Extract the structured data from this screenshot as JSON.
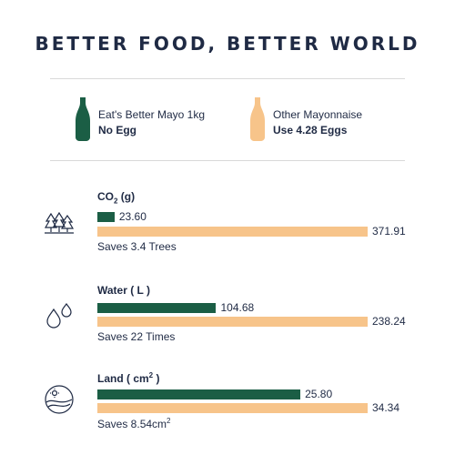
{
  "title": "BETTER FOOD, BETTER WORLD",
  "legend": [
    {
      "line1": "Eat's Better Mayo 1kg",
      "line2": "No Egg",
      "color": "#1b5e45"
    },
    {
      "line1": "Other Mayonnaise",
      "line2": "Use 4.28 Eggs",
      "color": "#f7c48a"
    }
  ],
  "chart_data": [
    {
      "type": "bar",
      "title": "CO₂ (g)",
      "series": [
        {
          "name": "Eat's Better Mayo 1kg",
          "values": [
            23.6
          ]
        },
        {
          "name": "Other Mayonnaise",
          "values": [
            371.91
          ]
        }
      ],
      "value_labels": [
        "23.60",
        "371.91"
      ],
      "note": "Saves 3.4 Trees",
      "icon": "trees-icon"
    },
    {
      "type": "bar",
      "title": "Water ( L )",
      "series": [
        {
          "name": "Eat's Better Mayo 1kg",
          "values": [
            104.68
          ]
        },
        {
          "name": "Other Mayonnaise",
          "values": [
            238.24
          ]
        }
      ],
      "value_labels": [
        "104.68",
        "238.24"
      ],
      "note": "Saves 22 Times",
      "icon": "water-drops-icon"
    },
    {
      "type": "bar",
      "title": "Land ( cm² )",
      "series": [
        {
          "name": "Eat's Better Mayo 1kg",
          "values": [
            25.8
          ]
        },
        {
          "name": "Other Mayonnaise",
          "values": [
            34.34
          ]
        }
      ],
      "value_labels": [
        "25.80",
        "34.34"
      ],
      "note": "Saves 8.54cm²",
      "icon": "land-sun-icon"
    }
  ]
}
